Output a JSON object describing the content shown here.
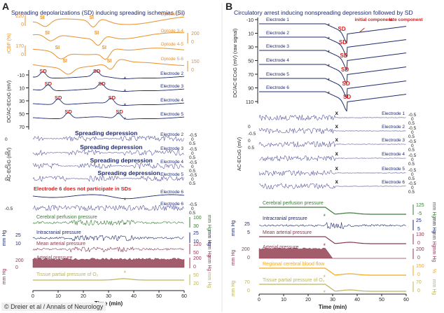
{
  "chart_data": [
    {
      "panel": "A",
      "title": "Spreading depolarizations (SD) inducing spreading ischemias (SI)",
      "xlabel": "Time (min)",
      "xlim": [
        0,
        60
      ],
      "xticks": [
        0,
        10,
        20,
        30,
        40,
        50,
        60
      ],
      "traces": [
        {
          "name": "Optode 2-3",
          "group": "rcbf",
          "color": "#e8902a",
          "side": "left",
          "scale": [
            "220",
            "0"
          ]
        },
        {
          "name": "Optode 3-4",
          "group": "rcbf",
          "color": "#e8902a",
          "side": "right",
          "scale": [
            "200",
            "0"
          ]
        },
        {
          "name": "Optode 4-5",
          "group": "rcbf",
          "color": "#e8902a",
          "side": "left",
          "scale": [
            "170",
            "0"
          ]
        },
        {
          "name": "Optode 5-6",
          "group": "rcbf",
          "color": "#e8902a",
          "side": "right",
          "scale": [
            "150",
            "0"
          ]
        },
        {
          "name": "Electrode 2",
          "group": "dc",
          "color": "#1f2a6e"
        },
        {
          "name": "Electrode 3",
          "group": "dc",
          "color": "#1f2a6e"
        },
        {
          "name": "Electrode 4",
          "group": "dc",
          "color": "#1f2a6e"
        },
        {
          "name": "Electrode 5",
          "group": "dc",
          "color": "#1f2a6e"
        },
        {
          "name": "Electrode 2",
          "group": "ac",
          "color": "#5b5aa0",
          "scale": [
            "-0.5",
            "0",
            "0.5"
          ],
          "label": "Spreading depression"
        },
        {
          "name": "Electrode 3",
          "group": "ac",
          "color": "#5b5aa0",
          "scale": [
            "-0.5",
            "0",
            "0.5"
          ],
          "label": "Spreading depression"
        },
        {
          "name": "Electrode 4",
          "group": "ac",
          "color": "#5b5aa0",
          "scale": [
            "-0.5",
            "0",
            "0.5"
          ],
          "label": "Spreading depression"
        },
        {
          "name": "Electrode 5",
          "group": "ac",
          "color": "#5b5aa0",
          "scale": [
            "-0.5",
            "0",
            "0.5"
          ],
          "label": "Spreading depression"
        },
        {
          "name": "Electrode 6",
          "group": "dc6",
          "color": "#1f2a6e"
        },
        {
          "name": "Electrode 6",
          "group": "ac",
          "color": "#5b5aa0",
          "scale": [
            "-0.5",
            "0",
            "0.5"
          ],
          "label": ""
        },
        {
          "name": "Cerebral perfusion pressure",
          "group": "sys",
          "color": "#3c7a3a",
          "scale": [
            "100",
            "30"
          ],
          "unit": "mm Hg"
        },
        {
          "name": "Intracranial pressure",
          "group": "sys",
          "color": "#1f2a6e",
          "scale": [
            "25",
            "10"
          ],
          "unit": "mm Hg"
        },
        {
          "name": "Mean arterial pressure",
          "group": "sys",
          "color": "#8b3a52",
          "scale": [
            "120",
            "50"
          ],
          "unit": "mm Hg"
        },
        {
          "name": "Arterial pressure",
          "group": "sys",
          "color": "#8b3a52",
          "scale": [
            "200",
            "0"
          ],
          "unit": "mm Hg"
        },
        {
          "name": "Tissue partial pressure of O₂",
          "group": "sys",
          "color": "#b9b45a",
          "scale": [
            "50",
            "20"
          ],
          "unit": "mm Hg"
        }
      ],
      "axis_labels": {
        "rcbf": "rCBF (%)",
        "dc": "DC/AC-ECoG (mV)",
        "ac": "AC-ECoG (mV)",
        "mmhg": "mm Hg"
      },
      "dc_ticks": [
        "-10",
        "10",
        "30",
        "50",
        "70"
      ],
      "annotations": {
        "si": "SI",
        "sd": "SD",
        "no_sd": "Electrode 6 does not participate in SDs",
        "star": "*"
      }
    },
    {
      "panel": "B",
      "title": "Circulatory arrest inducing nonspreading depression followed by SD",
      "xlabel": "Time (min)",
      "xlim": [
        0,
        60
      ],
      "xticks": [
        0,
        10,
        20,
        30,
        40,
        50,
        60
      ],
      "dc_axis_label": "DC/AC-ECoG (mV) (raw signal)",
      "dc_ticks": [
        "-10",
        "10",
        "30",
        "50",
        "70",
        "90",
        "110"
      ],
      "dc_traces": [
        "Electrode 1",
        "Electrode 2",
        "Electrode 3",
        "Electrode 4",
        "Electrode 5",
        "Electrode 6"
      ],
      "component_labels": {
        "initial": "initial component",
        "late": "late component"
      },
      "ac_axis_label": "AC-ECoG (mV)",
      "ac_traces": [
        "Electrode 1",
        "Electrode 2",
        "Electrode 3",
        "Electrode 4",
        "Electrode 5",
        "Electrode 6"
      ],
      "ac_scale": [
        "-0.5",
        "0",
        "0.5"
      ],
      "sys_traces": [
        {
          "name": "Cerebral perfusion pressure",
          "color": "#3c7a3a",
          "scale": [
            "125",
            "-5"
          ],
          "unit": "mm Hg"
        },
        {
          "name": "Intracranial pressure",
          "color": "#1f2a6e",
          "scale": [
            "25",
            "5"
          ],
          "unit": "mm Hg"
        },
        {
          "name": "Mean arterial pressure",
          "color": "#8b3a52",
          "scale": [
            "130",
            "0"
          ],
          "unit": "mm Hg"
        },
        {
          "name": "Arterial pressure",
          "color": "#8b3a52",
          "scale": [
            "200",
            "0"
          ],
          "unit": "mm Hg"
        },
        {
          "name": "Regional cerebral blood flow",
          "color": "#f2a81d",
          "scale": [
            "150",
            "0"
          ],
          "unit": "%"
        },
        {
          "name": "Tissue partial pressure of O₂",
          "color": "#b9b45a",
          "scale": [
            "70",
            "0"
          ],
          "unit": "mm Hg"
        }
      ],
      "annotations": {
        "sd": "SD",
        "x": "x",
        "star": "*"
      }
    }
  ],
  "labels": {
    "panel_a": "A",
    "panel_b": "B",
    "credit": "© Dreier et al / Annals of Neurology"
  },
  "colors": {
    "orange": "#e8902a",
    "navy": "#1f2a6e",
    "purple": "#5b5aa0",
    "red": "#d21f1f",
    "green": "#3c7a3a",
    "maroon": "#8b3a52",
    "olive": "#b9b45a",
    "rcbf_b": "#f2a81d"
  }
}
